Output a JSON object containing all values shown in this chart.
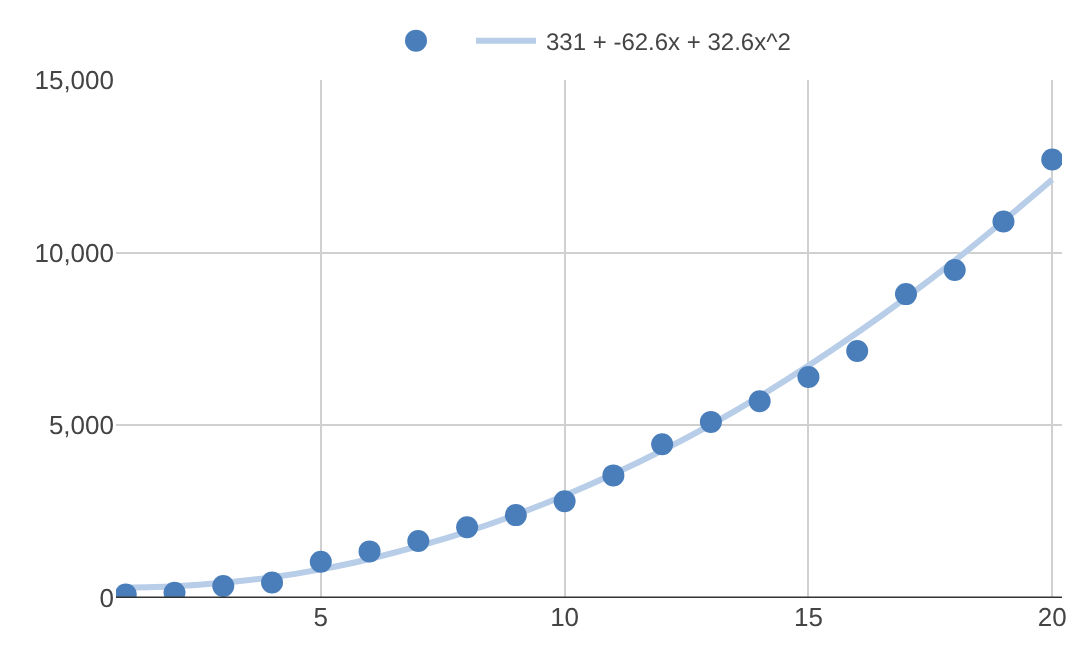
{
  "chart_data": {
    "type": "scatter",
    "legend": "top",
    "grid": true,
    "marker": "circle",
    "xlim": [
      0.8,
      20.2
    ],
    "xticks": [
      5,
      10,
      15,
      20
    ],
    "ylim": [
      0,
      15000
    ],
    "yticks": [
      0,
      {
        "value": 5000,
        "label": "5,000"
      },
      {
        "value": 10000,
        "label": "10,000"
      },
      {
        "value": 15000,
        "label": "15,000"
      }
    ],
    "series": [
      {
        "color": "#4a7ebb",
        "x": [
          1,
          2,
          3,
          4,
          5,
          6,
          7,
          8,
          9,
          10,
          11,
          12,
          13,
          14,
          15,
          16,
          17,
          18,
          19,
          20
        ],
        "values": [
          100,
          150,
          350,
          450,
          1050,
          1350,
          1650,
          2050,
          2400,
          2800,
          3550,
          4450,
          5100,
          5700,
          6400,
          7150,
          8800,
          9500,
          10900,
          12700
        ]
      },
      {
        "type": "line",
        "name": "331 + -62.6x + 32.6x^2",
        "color": "#b7cde8",
        "marker": "none",
        "x": [
          1,
          2,
          3,
          4,
          5,
          6,
          8,
          10,
          12,
          14,
          16,
          18,
          20
        ],
        "values": [
          300,
          340,
          440,
          600,
          830,
          1130,
          1920,
          2970,
          4270,
          5840,
          7680,
          9770,
          12120
        ]
      }
    ]
  }
}
